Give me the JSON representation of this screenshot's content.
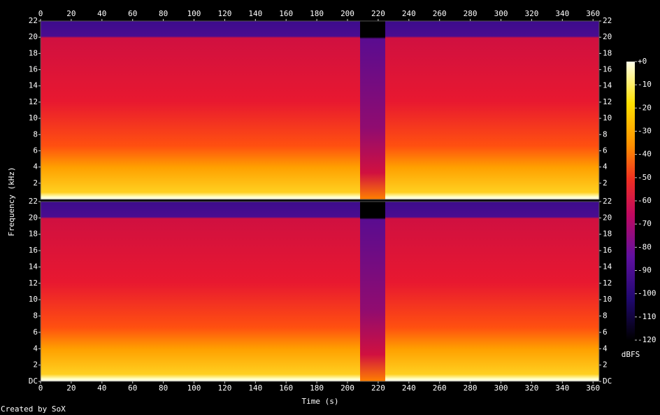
{
  "chart_data": [
    {
      "type": "spectrogram",
      "xlim": [
        0,
        364
      ],
      "ylim": [
        0,
        22
      ],
      "xticks": [
        0,
        20,
        40,
        60,
        80,
        100,
        120,
        140,
        160,
        180,
        200,
        220,
        240,
        260,
        280,
        300,
        320,
        340,
        360
      ],
      "yticks": [
        2,
        4,
        6,
        8,
        10,
        12,
        14,
        16,
        18,
        20,
        22
      ]
    },
    {
      "type": "spectrogram",
      "xlim": [
        0,
        364
      ],
      "ylim": [
        0,
        22
      ],
      "xticks": [
        0,
        20,
        40,
        60,
        80,
        100,
        120,
        140,
        160,
        180,
        200,
        220,
        240,
        260,
        280,
        300,
        320,
        340,
        360
      ],
      "yticks": [
        {
          "value": 0,
          "label": "DC"
        },
        2,
        4,
        6,
        8,
        10,
        12,
        14,
        16,
        18,
        20,
        22
      ]
    }
  ],
  "xlabel": "Time (s)",
  "ylabel": "Frequency (kHz)",
  "colorbar": {
    "label": "dBFS",
    "lim": [
      -120,
      0
    ],
    "ticks": [
      {
        "value": 0,
        "label": "+0"
      },
      -10,
      -20,
      -30,
      -40,
      -50,
      -60,
      -70,
      -80,
      -90,
      -100,
      -110,
      -120
    ]
  },
  "footer": "Created by SoX"
}
